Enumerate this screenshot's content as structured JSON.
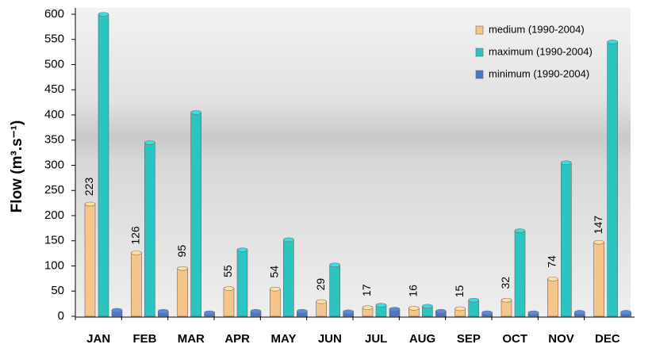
{
  "chart_data": {
    "type": "bar",
    "y_label": "Flow (m³.s⁻¹)",
    "categories": [
      "JAN",
      "FEB",
      "MAR",
      "APR",
      "MAY",
      "JUN",
      "JUL",
      "AUG",
      "SEP",
      "OCT",
      "NOV",
      "DEC"
    ],
    "series": [
      {
        "name": "medium (1990-2004)",
        "color": "#f7c48a",
        "values": [
          223,
          126,
          95,
          55,
          54,
          29,
          17,
          16,
          15,
          32,
          74,
          147
        ]
      },
      {
        "name": "maximum (1990-2004)",
        "color": "#2cc4c0",
        "values": [
          600,
          345,
          405,
          132,
          152,
          102,
          22,
          20,
          32,
          170,
          305,
          545
        ]
      },
      {
        "name": "minimum (1990-2004)",
        "color": "#4a78c8",
        "values": [
          12,
          10,
          7,
          10,
          10,
          9,
          14,
          10,
          7,
          7,
          8,
          8
        ]
      }
    ],
    "ylim": [
      0,
      600
    ],
    "yticks": [
      0,
      50,
      100,
      150,
      200,
      250,
      300,
      350,
      400,
      450,
      500,
      550,
      600
    ]
  }
}
